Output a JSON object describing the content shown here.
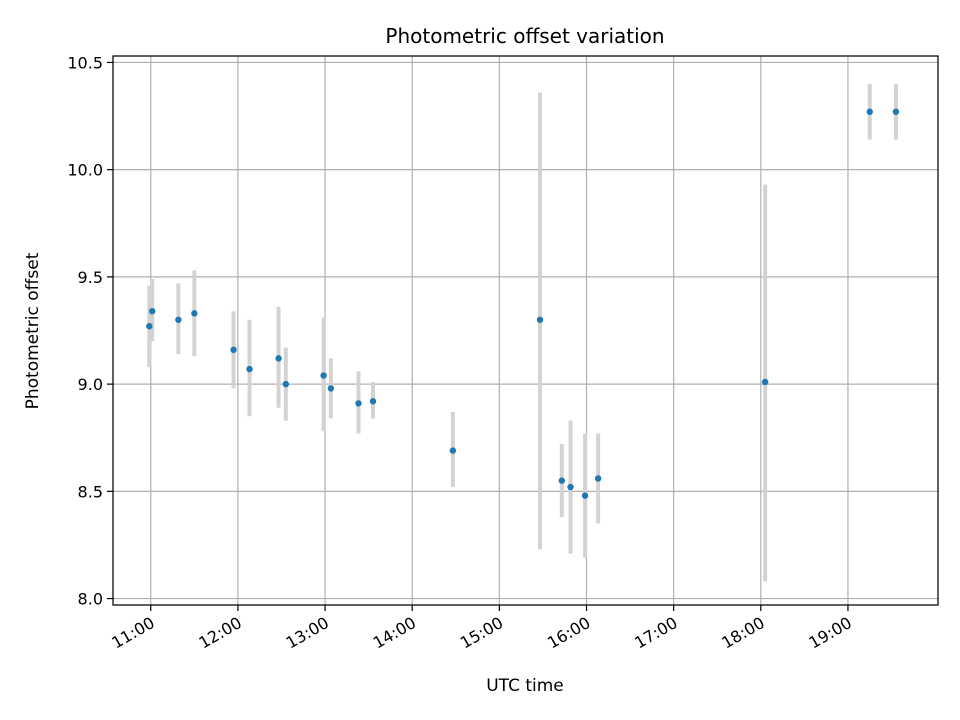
{
  "chart_data": {
    "type": "scatter",
    "title": "Photometric offset variation",
    "xlabel": "UTC time",
    "ylabel": "Photometric offset",
    "x_ticks": [
      "11:00",
      "12:00",
      "13:00",
      "14:00",
      "15:00",
      "16:00",
      "17:00",
      "18:00",
      "19:00"
    ],
    "y_ticks": [
      "8.0",
      "8.5",
      "9.0",
      "9.5",
      "10.0",
      "10.5"
    ],
    "xlim": [
      "10:34",
      "20:02"
    ],
    "ylim": [
      7.97,
      10.53
    ],
    "grid": true,
    "colors": {
      "points": "#1f77b4",
      "errorbars": "#d3d3d3",
      "grid": "#b0b0b0"
    },
    "points": [
      {
        "t": "10:59",
        "y": 9.27,
        "lo": 9.08,
        "hi": 9.46
      },
      {
        "t": "11:01",
        "y": 9.34,
        "lo": 9.2,
        "hi": 9.49
      },
      {
        "t": "11:19",
        "y": 9.3,
        "lo": 9.14,
        "hi": 9.47
      },
      {
        "t": "11:30",
        "y": 9.33,
        "lo": 9.13,
        "hi": 9.53
      },
      {
        "t": "11:57",
        "y": 9.16,
        "lo": 8.98,
        "hi": 9.34
      },
      {
        "t": "12:08",
        "y": 9.07,
        "lo": 8.85,
        "hi": 9.3
      },
      {
        "t": "12:28",
        "y": 9.12,
        "lo": 8.89,
        "hi": 9.36
      },
      {
        "t": "12:33",
        "y": 9.0,
        "lo": 8.83,
        "hi": 9.17
      },
      {
        "t": "12:59",
        "y": 9.04,
        "lo": 8.78,
        "hi": 9.31
      },
      {
        "t": "13:04",
        "y": 8.98,
        "lo": 8.84,
        "hi": 9.12
      },
      {
        "t": "13:23",
        "y": 8.91,
        "lo": 8.77,
        "hi": 9.06
      },
      {
        "t": "13:33",
        "y": 8.92,
        "lo": 8.84,
        "hi": 9.01
      },
      {
        "t": "14:28",
        "y": 8.69,
        "lo": 8.52,
        "hi": 8.87
      },
      {
        "t": "15:28",
        "y": 9.3,
        "lo": 8.23,
        "hi": 10.36
      },
      {
        "t": "15:43",
        "y": 8.55,
        "lo": 8.38,
        "hi": 8.72
      },
      {
        "t": "15:49",
        "y": 8.52,
        "lo": 8.21,
        "hi": 8.83
      },
      {
        "t": "15:59",
        "y": 8.48,
        "lo": 8.19,
        "hi": 8.77
      },
      {
        "t": "16:08",
        "y": 8.56,
        "lo": 8.35,
        "hi": 8.77
      },
      {
        "t": "18:03",
        "y": 9.01,
        "lo": 8.08,
        "hi": 9.93
      },
      {
        "t": "19:15",
        "y": 10.27,
        "lo": 10.14,
        "hi": 10.4
      },
      {
        "t": "19:33",
        "y": 10.27,
        "lo": 10.14,
        "hi": 10.4
      }
    ]
  }
}
